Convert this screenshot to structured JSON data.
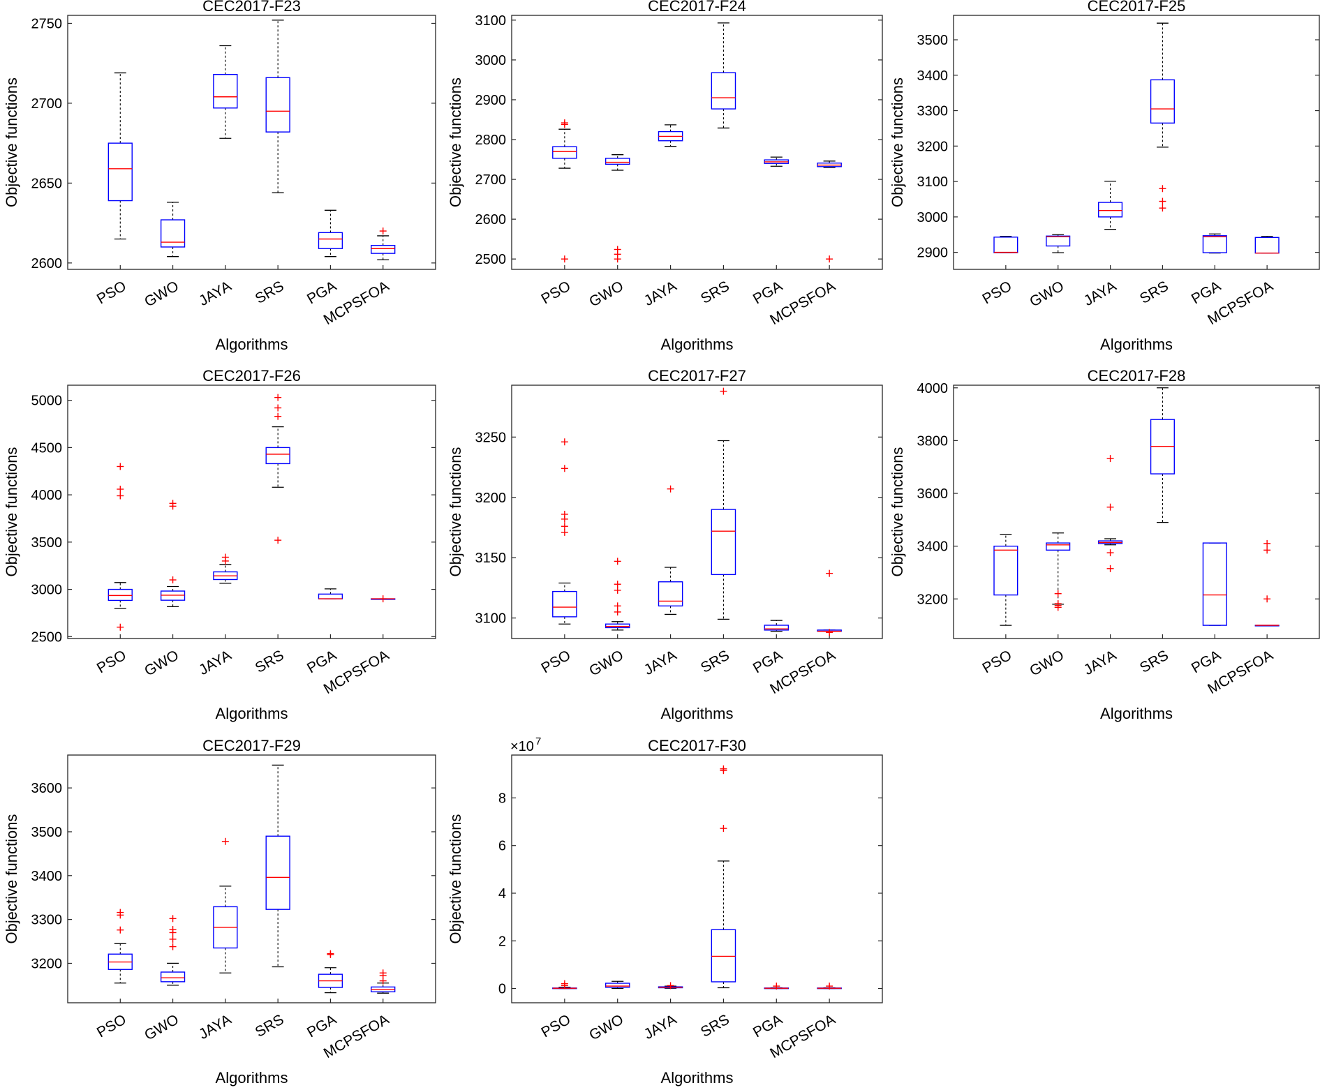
{
  "figure": {
    "xlabel": "Algorithms",
    "ylabel": "Objective functions",
    "colors": {
      "box": "#0000ff",
      "median": "#ff0000",
      "whisker": "#000000",
      "outlier": "#ff0000",
      "axis": "#262626"
    }
  },
  "chart_data": [
    {
      "type": "box",
      "title": "CEC2017-F23",
      "categories": [
        "PSO",
        "GWO",
        "JAYA",
        "SRS",
        "PGA",
        "MCPSFOA"
      ],
      "ylim": [
        2596,
        2755
      ],
      "yticks": [
        2600,
        2650,
        2700,
        2750
      ],
      "ytick_labels": [
        "2600",
        "2650",
        "2700",
        "2750"
      ],
      "boxes": [
        {
          "min": 2615,
          "q1": 2639,
          "median": 2659,
          "q3": 2675,
          "max": 2719,
          "outliers": []
        },
        {
          "min": 2604,
          "q1": 2610,
          "median": 2613,
          "q3": 2627,
          "max": 2638,
          "outliers": []
        },
        {
          "min": 2678,
          "q1": 2697,
          "median": 2704,
          "q3": 2718,
          "max": 2736,
          "outliers": []
        },
        {
          "min": 2644,
          "q1": 2682,
          "median": 2695,
          "q3": 2716,
          "max": 2752,
          "outliers": []
        },
        {
          "min": 2604,
          "q1": 2609,
          "median": 2615,
          "q3": 2619,
          "max": 2633,
          "outliers": []
        },
        {
          "min": 2602,
          "q1": 2606,
          "median": 2609,
          "q3": 2611,
          "max": 2617,
          "outliers": [
            2620
          ]
        }
      ]
    },
    {
      "type": "box",
      "title": "CEC2017-F24",
      "categories": [
        "PSO",
        "GWO",
        "JAYA",
        "SRS",
        "PGA",
        "MCPSFOA"
      ],
      "ylim": [
        2474,
        3112
      ],
      "yticks": [
        2500,
        2600,
        2700,
        2800,
        2900,
        3000,
        3100
      ],
      "ytick_labels": [
        "2500",
        "2600",
        "2700",
        "2800",
        "2900",
        "3000",
        "3100"
      ],
      "boxes": [
        {
          "min": 2728,
          "q1": 2753,
          "median": 2770,
          "q3": 2782,
          "max": 2826,
          "outliers": [
            2500,
            2838,
            2842
          ]
        },
        {
          "min": 2723,
          "q1": 2738,
          "median": 2743,
          "q3": 2753,
          "max": 2762,
          "outliers": [
            2500,
            2512,
            2524
          ]
        },
        {
          "min": 2783,
          "q1": 2797,
          "median": 2808,
          "q3": 2820,
          "max": 2837,
          "outliers": []
        },
        {
          "min": 2829,
          "q1": 2877,
          "median": 2905,
          "q3": 2968,
          "max": 3093,
          "outliers": []
        },
        {
          "min": 2733,
          "q1": 2740,
          "median": 2744,
          "q3": 2749,
          "max": 2756,
          "outliers": []
        },
        {
          "min": 2730,
          "q1": 2732,
          "median": 2736,
          "q3": 2741,
          "max": 2746,
          "outliers": [
            2500
          ]
        }
      ]
    },
    {
      "type": "box",
      "title": "CEC2017-F25",
      "categories": [
        "PSO",
        "GWO",
        "JAYA",
        "SRS",
        "PGA",
        "MCPSFOA"
      ],
      "ylim": [
        2852,
        3569
      ],
      "yticks": [
        2900,
        3000,
        3100,
        3200,
        3300,
        3400,
        3500
      ],
      "ytick_labels": [
        "2900",
        "3000",
        "3100",
        "3200",
        "3300",
        "3400",
        "3500"
      ],
      "boxes": [
        {
          "min": 2899,
          "q1": 2899,
          "median": 2900,
          "q3": 2943,
          "max": 2945,
          "outliers": []
        },
        {
          "min": 2899,
          "q1": 2918,
          "median": 2944,
          "q3": 2946,
          "max": 2950,
          "outliers": []
        },
        {
          "min": 2965,
          "q1": 3000,
          "median": 3018,
          "q3": 3041,
          "max": 3101,
          "outliers": []
        },
        {
          "min": 3197,
          "q1": 3265,
          "median": 3305,
          "q3": 3387,
          "max": 3547,
          "outliers": [
            3025,
            3044,
            3080
          ]
        },
        {
          "min": 2898,
          "q1": 2899,
          "median": 2944,
          "q3": 2947,
          "max": 2952,
          "outliers": []
        },
        {
          "min": 2898,
          "q1": 2898,
          "median": 2898,
          "q3": 2942,
          "max": 2945,
          "outliers": []
        }
      ]
    },
    {
      "type": "box",
      "title": "CEC2017-F26",
      "categories": [
        "PSO",
        "GWO",
        "JAYA",
        "SRS",
        "PGA",
        "MCPSFOA"
      ],
      "ylim": [
        2480,
        5160
      ],
      "yticks": [
        2500,
        3000,
        3500,
        4000,
        4500,
        5000
      ],
      "ytick_labels": [
        "2500",
        "3000",
        "3500",
        "4000",
        "4500",
        "5000"
      ],
      "boxes": [
        {
          "min": 2800,
          "q1": 2883,
          "median": 2935,
          "q3": 3000,
          "max": 3072,
          "outliers": [
            2600,
            3990,
            4060,
            4300
          ]
        },
        {
          "min": 2817,
          "q1": 2885,
          "median": 2938,
          "q3": 2982,
          "max": 3030,
          "outliers": [
            3100,
            3880,
            3910
          ]
        },
        {
          "min": 3064,
          "q1": 3104,
          "median": 3143,
          "q3": 3185,
          "max": 3263,
          "outliers": [
            3300,
            3340
          ]
        },
        {
          "min": 4080,
          "q1": 4330,
          "median": 4430,
          "q3": 4500,
          "max": 4720,
          "outliers": [
            3520,
            4830,
            4920,
            5030
          ]
        },
        {
          "min": 2900,
          "q1": 2900,
          "median": 2900,
          "q3": 2950,
          "max": 3005,
          "outliers": []
        },
        {
          "min": 2900,
          "q1": 2900,
          "median": 2900,
          "q3": 2900,
          "max": 2900,
          "outliers": [
            2900
          ]
        }
      ]
    },
    {
      "type": "box",
      "title": "CEC2017-F27",
      "categories": [
        "PSO",
        "GWO",
        "JAYA",
        "SRS",
        "PGA",
        "MCPSFOA"
      ],
      "ylim": [
        3083,
        3293
      ],
      "yticks": [
        3100,
        3150,
        3200,
        3250
      ],
      "ytick_labels": [
        "3100",
        "3150",
        "3200",
        "3250"
      ],
      "boxes": [
        {
          "min": 3095,
          "q1": 3101,
          "median": 3109,
          "q3": 3122,
          "max": 3129,
          "outliers": [
            3171,
            3176,
            3182,
            3186,
            3224,
            3246
          ]
        },
        {
          "min": 3090,
          "q1": 3092,
          "median": 3093,
          "q3": 3095,
          "max": 3097,
          "outliers": [
            3105,
            3110,
            3123,
            3128,
            3147
          ]
        },
        {
          "min": 3103,
          "q1": 3110,
          "median": 3114,
          "q3": 3130,
          "max": 3142,
          "outliers": [
            3207
          ]
        },
        {
          "min": 3099,
          "q1": 3136,
          "median": 3172,
          "q3": 3190,
          "max": 3247,
          "outliers": [
            3288
          ]
        },
        {
          "min": 3089,
          "q1": 3090,
          "median": 3091,
          "q3": 3094,
          "max": 3098,
          "outliers": []
        },
        {
          "min": 3089,
          "q1": 3089,
          "median": 3089,
          "q3": 3090,
          "max": 3090,
          "outliers": [
            3088,
            3137
          ]
        }
      ]
    },
    {
      "type": "box",
      "title": "CEC2017-F28",
      "categories": [
        "PSO",
        "GWO",
        "JAYA",
        "SRS",
        "PGA",
        "MCPSFOA"
      ],
      "ylim": [
        3050,
        4010
      ],
      "yticks": [
        3200,
        3400,
        3600,
        3800,
        4000
      ],
      "ytick_labels": [
        "3200",
        "3400",
        "3600",
        "3800",
        "4000"
      ],
      "boxes": [
        {
          "min": 3100,
          "q1": 3215,
          "median": 3385,
          "q3": 3400,
          "max": 3445,
          "outliers": []
        },
        {
          "min": 3180,
          "q1": 3385,
          "median": 3405,
          "q3": 3412,
          "max": 3450,
          "outliers": [
            3168,
            3175,
            3182,
            3220
          ]
        },
        {
          "min": 3405,
          "q1": 3410,
          "median": 3414,
          "q3": 3420,
          "max": 3428,
          "outliers": [
            3315,
            3375,
            3548,
            3732
          ]
        },
        {
          "min": 3490,
          "q1": 3674,
          "median": 3778,
          "q3": 3880,
          "max": 4000,
          "outliers": []
        },
        {
          "min": 3100,
          "q1": 3100,
          "median": 3215,
          "q3": 3412,
          "max": 3412,
          "outliers": []
        },
        {
          "min": 3100,
          "q1": 3100,
          "median": 3100,
          "q3": 3100,
          "max": 3100,
          "outliers": [
            3200,
            3385,
            3410
          ]
        }
      ]
    },
    {
      "type": "box",
      "title": "CEC2017-F29",
      "categories": [
        "PSO",
        "GWO",
        "JAYA",
        "SRS",
        "PGA",
        "MCPSFOA"
      ],
      "ylim": [
        3110,
        3675
      ],
      "yticks": [
        3200,
        3300,
        3400,
        3500,
        3600
      ],
      "ytick_labels": [
        "3200",
        "3300",
        "3400",
        "3500",
        "3600"
      ],
      "boxes": [
        {
          "min": 3155,
          "q1": 3186,
          "median": 3203,
          "q3": 3221,
          "max": 3245,
          "outliers": [
            3276,
            3310,
            3316
          ]
        },
        {
          "min": 3150,
          "q1": 3158,
          "median": 3167,
          "q3": 3180,
          "max": 3200,
          "outliers": [
            3238,
            3255,
            3270,
            3277,
            3302
          ]
        },
        {
          "min": 3178,
          "q1": 3235,
          "median": 3282,
          "q3": 3329,
          "max": 3376,
          "outliers": [
            3478
          ]
        },
        {
          "min": 3192,
          "q1": 3323,
          "median": 3396,
          "q3": 3490,
          "max": 3652,
          "outliers": []
        },
        {
          "min": 3133,
          "q1": 3145,
          "median": 3160,
          "q3": 3175,
          "max": 3190,
          "outliers": [
            3220,
            3222
          ]
        },
        {
          "min": 3132,
          "q1": 3135,
          "median": 3140,
          "q3": 3146,
          "max": 3155,
          "outliers": [
            3160,
            3172,
            3178
          ]
        }
      ]
    },
    {
      "type": "box",
      "title": "CEC2017-F30",
      "exponent_label": "×10",
      "exponent_power": "7",
      "categories": [
        "PSO",
        "GWO",
        "JAYA",
        "SRS",
        "PGA",
        "MCPSFOA"
      ],
      "ylim": [
        -0.6,
        9.8
      ],
      "yticks": [
        0,
        2,
        4,
        6,
        8
      ],
      "ytick_labels": [
        "0",
        "2",
        "4",
        "6",
        "8"
      ],
      "boxes": [
        {
          "min": 0.0,
          "q1": 0.0,
          "median": 0.01,
          "q3": 0.02,
          "max": 0.05,
          "outliers": [
            0.12,
            0.2
          ]
        },
        {
          "min": 0.0,
          "q1": 0.05,
          "median": 0.1,
          "q3": 0.22,
          "max": 0.3,
          "outliers": []
        },
        {
          "min": 0.01,
          "q1": 0.03,
          "median": 0.05,
          "q3": 0.07,
          "max": 0.1,
          "outliers": [
            0.12
          ]
        },
        {
          "min": 0.03,
          "q1": 0.28,
          "median": 1.35,
          "q3": 2.47,
          "max": 5.35,
          "outliers": [
            6.72,
            9.15,
            9.22
          ]
        },
        {
          "min": 0.0,
          "q1": 0.0,
          "median": 0.01,
          "q3": 0.02,
          "max": 0.03,
          "outliers": [
            0.1
          ]
        },
        {
          "min": 0.0,
          "q1": 0.0,
          "median": 0.01,
          "q3": 0.02,
          "max": 0.03,
          "outliers": [
            0.1
          ]
        }
      ]
    }
  ]
}
